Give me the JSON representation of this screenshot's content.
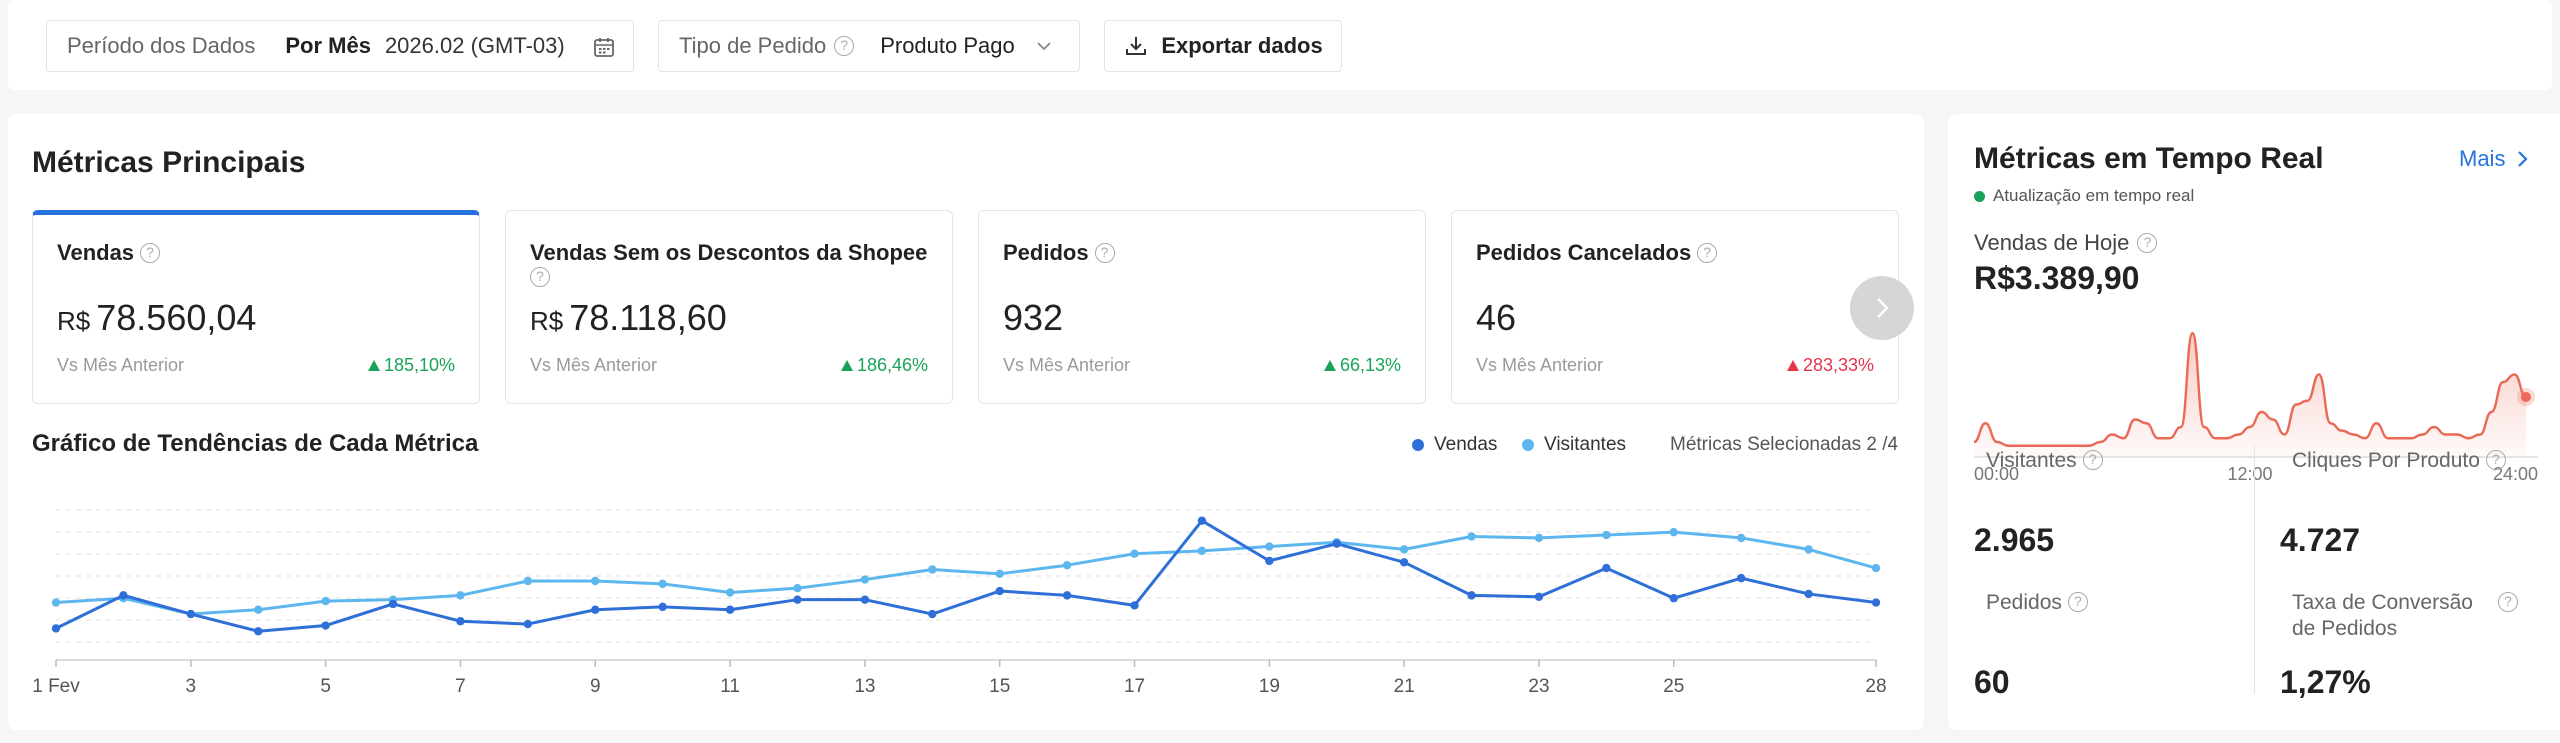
{
  "filters": {
    "period_label": "Período dos Dados",
    "period_mode": "Por Mês",
    "period_value": "2026.02 (GMT-03)",
    "order_type_label": "Tipo de Pedido",
    "order_type_value": "Produto Pago",
    "export_label": "Exportar dados"
  },
  "main": {
    "title": "Métricas Principais",
    "metrics": [
      {
        "label": "Vendas",
        "currency": "R$",
        "value": "78.560,04",
        "compare": "Vs Mês Anterior",
        "change": "185,10%",
        "direction": "up"
      },
      {
        "label": "Vendas Sem os Descontos da Shopee",
        "currency": "R$",
        "value": "78.118,60",
        "compare": "Vs Mês Anterior",
        "change": "186,46%",
        "direction": "up"
      },
      {
        "label": "Pedidos",
        "value": "932",
        "compare": "Vs Mês Anterior",
        "change": "66,13%",
        "direction": "up"
      },
      {
        "label": "Pedidos Cancelados",
        "value": "46",
        "compare": "Vs Mês Anterior",
        "change": "283,33%",
        "direction": "down"
      }
    ],
    "trend_title": "Gráfico de Tendências de Cada Métrica",
    "selected_metrics": "Métricas Selecionadas 2 /4"
  },
  "colors": {
    "accent": "#2673dd",
    "vendas": "#2f6fd8",
    "visitantes": "#5db6ee",
    "up": "#19a35a",
    "down": "#e5344b",
    "spark": "#ea6a57"
  },
  "chart_data": {
    "type": "line",
    "x": [
      1,
      2,
      3,
      4,
      5,
      6,
      7,
      8,
      9,
      10,
      11,
      12,
      13,
      14,
      15,
      16,
      17,
      18,
      19,
      20,
      21,
      22,
      23,
      24,
      25,
      26,
      27,
      28
    ],
    "x_tick_labels": [
      "1 Fev",
      "3",
      "5",
      "7",
      "9",
      "11",
      "13",
      "15",
      "17",
      "19",
      "21",
      "23",
      "25",
      "28"
    ],
    "x_tick_positions": [
      1,
      3,
      5,
      7,
      9,
      11,
      13,
      15,
      17,
      19,
      21,
      23,
      25,
      28
    ],
    "grid": true,
    "legend_position": "top-right",
    "series": [
      {
        "name": "Vendas",
        "values": [
          22,
          45,
          32,
          20,
          24,
          39,
          27,
          25,
          35,
          37,
          35,
          42,
          42,
          32,
          48,
          45,
          38,
          97,
          69,
          81,
          68,
          45,
          44,
          64,
          43,
          57,
          46,
          40
        ]
      },
      {
        "name": "Visitantes",
        "values": [
          40,
          43,
          32,
          35,
          41,
          42,
          45,
          55,
          55,
          53,
          47,
          50,
          56,
          63,
          60,
          66,
          74,
          76,
          79,
          82,
          77,
          86,
          85,
          87,
          89,
          85,
          77,
          64
        ]
      }
    ],
    "ylim": [
      0,
      110
    ]
  },
  "realtime": {
    "title": "Métricas em Tempo Real",
    "more_label": "Mais",
    "subtitle": "Atualização em tempo real",
    "sales_label": "Vendas de Hoje",
    "sales_value": "R$3.389,90",
    "spark": {
      "type": "area",
      "x_tick_labels": [
        "00:00",
        "12:00",
        "24:00"
      ],
      "values": [
        4,
        9,
        4,
        3,
        3,
        3,
        3,
        3,
        3,
        3,
        3,
        4,
        6,
        5,
        10,
        9,
        5,
        5,
        8,
        33,
        8,
        5,
        5,
        6,
        8,
        12,
        10,
        6,
        14,
        15,
        22,
        9,
        7,
        6,
        5,
        9,
        5,
        5,
        5,
        6,
        8,
        6,
        6,
        5,
        6,
        12,
        20,
        22,
        16
      ]
    },
    "metrics": [
      {
        "label": "Visitantes",
        "value": "2.965"
      },
      {
        "label": "Cliques Por Produto",
        "value": "4.727"
      },
      {
        "label": "Pedidos",
        "value": "60"
      },
      {
        "label": "Taxa de Conversão de Pedidos",
        "value": "1,27%"
      }
    ]
  }
}
